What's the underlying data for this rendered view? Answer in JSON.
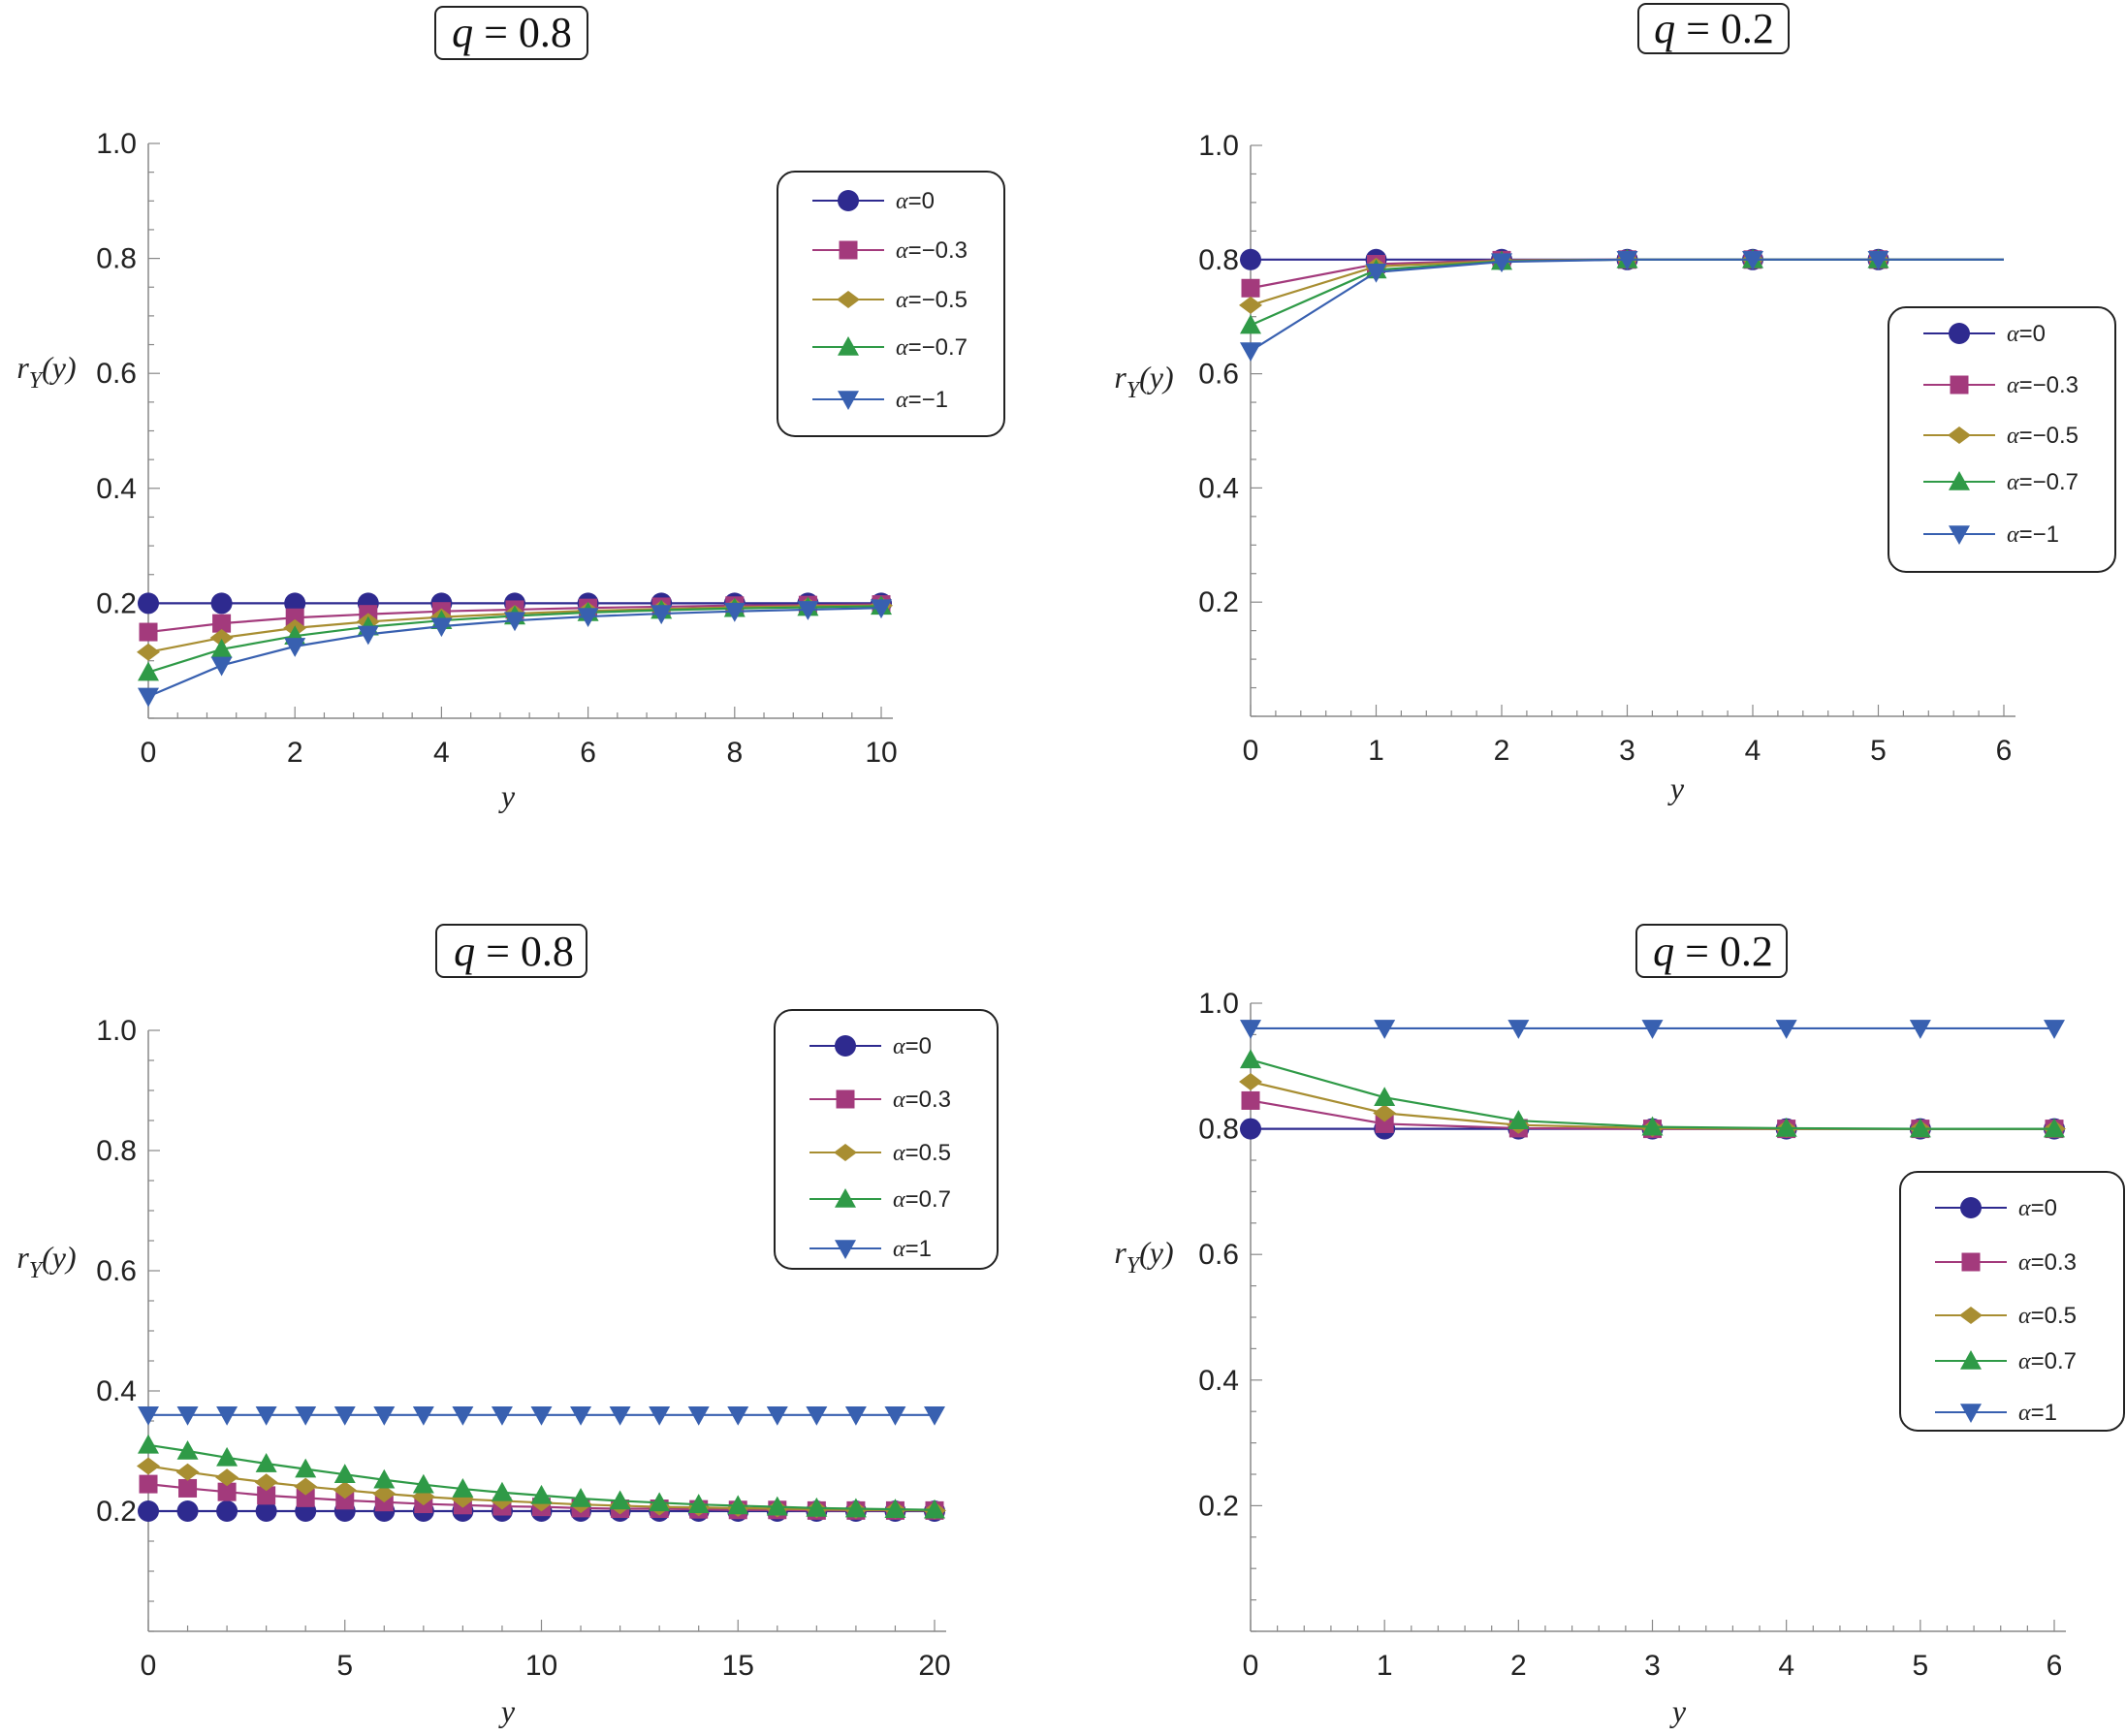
{
  "colors": {
    "alpha_0": "#2e2a8f",
    "alpha_03": "#a33a7c",
    "alpha_05": "#a88e32",
    "alpha_07": "#2f9a47",
    "alpha_1": "#3860b0",
    "axis": "#888888"
  },
  "chart_data": [
    {
      "type": "line",
      "title_var": "q",
      "title_val": "0.8",
      "xlabel": "y",
      "ylabel": "r",
      "ylabel_sub": "Y",
      "ylabel_arg": "(y)",
      "xlim": [
        0,
        10
      ],
      "ylim": [
        0,
        1.0
      ],
      "xticks": [
        "0",
        "2",
        "4",
        "6",
        "8",
        "10"
      ],
      "yticks": [
        "0.2",
        "0.4",
        "0.6",
        "0.8",
        "1.0"
      ],
      "x": [
        0,
        1,
        2,
        3,
        4,
        5,
        6,
        7,
        8,
        9,
        10
      ],
      "legend_position": "top-right",
      "series": [
        {
          "name": "α=0",
          "alpha": "α",
          "rest": "=0",
          "marker": "circle",
          "color_key": "alpha_0",
          "values": [
            0.2,
            0.2,
            0.2,
            0.2,
            0.2,
            0.2,
            0.2,
            0.2,
            0.2,
            0.2,
            0.2
          ]
        },
        {
          "name": "α=−0.3",
          "alpha": "α",
          "rest": "=−0.3",
          "marker": "square",
          "color_key": "alpha_03",
          "values": [
            0.15,
            0.165,
            0.175,
            0.181,
            0.186,
            0.189,
            0.192,
            0.194,
            0.196,
            0.197,
            0.198
          ]
        },
        {
          "name": "α=−0.5",
          "alpha": "α",
          "rest": "=−0.5",
          "marker": "diamond",
          "color_key": "alpha_05",
          "values": [
            0.115,
            0.14,
            0.157,
            0.168,
            0.176,
            0.182,
            0.187,
            0.19,
            0.193,
            0.195,
            0.196
          ]
        },
        {
          "name": "α=−0.7",
          "alpha": "α",
          "rest": "=−0.7",
          "marker": "triangle-up",
          "color_key": "alpha_07",
          "values": [
            0.08,
            0.12,
            0.143,
            0.159,
            0.17,
            0.178,
            0.184,
            0.188,
            0.191,
            0.193,
            0.195
          ]
        },
        {
          "name": "α=−1",
          "alpha": "α",
          "rest": "=−1",
          "marker": "triangle-down",
          "color_key": "alpha_1",
          "values": [
            0.038,
            0.092,
            0.125,
            0.146,
            0.16,
            0.17,
            0.177,
            0.182,
            0.186,
            0.189,
            0.192
          ]
        }
      ]
    },
    {
      "type": "line",
      "title_var": "q",
      "title_val": "0.2",
      "xlabel": "y",
      "ylabel": "r",
      "ylabel_sub": "Y",
      "ylabel_arg": "(y)",
      "xlim": [
        0,
        6
      ],
      "ylim": [
        0,
        1.0
      ],
      "xticks": [
        "0",
        "1",
        "2",
        "3",
        "4",
        "5",
        "6"
      ],
      "yticks": [
        "0.2",
        "0.4",
        "0.6",
        "0.8",
        "1.0"
      ],
      "x": [
        0,
        1,
        2,
        3,
        4,
        5
      ],
      "line_extends_to": 6,
      "legend_position": "middle-right",
      "series": [
        {
          "name": "α=0",
          "alpha": "α",
          "rest": "=0",
          "marker": "circle",
          "color_key": "alpha_0",
          "values": [
            0.8,
            0.8,
            0.8,
            0.8,
            0.8,
            0.8
          ]
        },
        {
          "name": "α=−0.3",
          "alpha": "α",
          "rest": "=−0.3",
          "marker": "square",
          "color_key": "alpha_03",
          "values": [
            0.75,
            0.792,
            0.799,
            0.8,
            0.8,
            0.8
          ]
        },
        {
          "name": "α=−0.5",
          "alpha": "α",
          "rest": "=−0.5",
          "marker": "diamond",
          "color_key": "alpha_05",
          "values": [
            0.72,
            0.788,
            0.798,
            0.8,
            0.8,
            0.8
          ]
        },
        {
          "name": "α=−0.7",
          "alpha": "α",
          "rest": "=−0.7",
          "marker": "triangle-up",
          "color_key": "alpha_07",
          "values": [
            0.685,
            0.782,
            0.797,
            0.8,
            0.8,
            0.8
          ]
        },
        {
          "name": "α=−1",
          "alpha": "α",
          "rest": "=−1",
          "marker": "triangle-down",
          "color_key": "alpha_1",
          "values": [
            0.64,
            0.778,
            0.796,
            0.8,
            0.8,
            0.8
          ]
        }
      ]
    },
    {
      "type": "line",
      "title_var": "q",
      "title_val": "0.8",
      "xlabel": "y",
      "ylabel": "r",
      "ylabel_sub": "Y",
      "ylabel_arg": "(y)",
      "xlim": [
        0,
        20
      ],
      "ylim": [
        0,
        1.0
      ],
      "xticks": [
        "0",
        "5",
        "10",
        "15",
        "20"
      ],
      "yticks": [
        "0.2",
        "0.4",
        "0.6",
        "0.8",
        "1.0"
      ],
      "x": [
        0,
        1,
        2,
        3,
        4,
        5,
        6,
        7,
        8,
        9,
        10,
        11,
        12,
        13,
        14,
        15,
        16,
        17,
        18,
        19,
        20
      ],
      "legend_position": "top-right",
      "series": [
        {
          "name": "α=0",
          "alpha": "α",
          "rest": "=0",
          "marker": "circle",
          "color_key": "alpha_0",
          "values": [
            0.2,
            0.2,
            0.2,
            0.2,
            0.2,
            0.2,
            0.2,
            0.2,
            0.2,
            0.2,
            0.2,
            0.2,
            0.2,
            0.2,
            0.2,
            0.2,
            0.2,
            0.2,
            0.2,
            0.2,
            0.2
          ]
        },
        {
          "name": "α=0.3",
          "alpha": "α",
          "rest": "=0.3",
          "marker": "square",
          "color_key": "alpha_03",
          "values": [
            0.245,
            0.238,
            0.232,
            0.226,
            0.222,
            0.218,
            0.215,
            0.212,
            0.21,
            0.208,
            0.207,
            0.205,
            0.204,
            0.204,
            0.203,
            0.202,
            0.202,
            0.201,
            0.201,
            0.201,
            0.201
          ]
        },
        {
          "name": "α=0.5",
          "alpha": "α",
          "rest": "=0.5",
          "marker": "diamond",
          "color_key": "alpha_05",
          "values": [
            0.275,
            0.265,
            0.256,
            0.248,
            0.241,
            0.235,
            0.229,
            0.224,
            0.22,
            0.217,
            0.214,
            0.211,
            0.209,
            0.207,
            0.206,
            0.205,
            0.204,
            0.203,
            0.202,
            0.202,
            0.201
          ]
        },
        {
          "name": "α=0.7",
          "alpha": "α",
          "rest": "=0.7",
          "marker": "triangle-up",
          "color_key": "alpha_07",
          "values": [
            0.31,
            0.3,
            0.289,
            0.279,
            0.27,
            0.261,
            0.252,
            0.244,
            0.237,
            0.231,
            0.226,
            0.221,
            0.217,
            0.214,
            0.211,
            0.209,
            0.207,
            0.205,
            0.204,
            0.203,
            0.202
          ]
        },
        {
          "name": "α=1",
          "alpha": "α",
          "rest": "=1",
          "marker": "triangle-down",
          "color_key": "alpha_1",
          "values": [
            0.36,
            0.36,
            0.36,
            0.36,
            0.36,
            0.36,
            0.36,
            0.36,
            0.36,
            0.36,
            0.36,
            0.36,
            0.36,
            0.36,
            0.36,
            0.36,
            0.36,
            0.36,
            0.36,
            0.36,
            0.36
          ]
        }
      ]
    },
    {
      "type": "line",
      "title_var": "q",
      "title_val": "0.2",
      "xlabel": "y",
      "ylabel": "r",
      "ylabel_sub": "Y",
      "ylabel_arg": "(y)",
      "xlim": [
        0,
        6
      ],
      "ylim": [
        0,
        1.0
      ],
      "xticks": [
        "0",
        "1",
        "2",
        "3",
        "4",
        "5",
        "6"
      ],
      "yticks": [
        "0.2",
        "0.4",
        "0.6",
        "0.8",
        "1.0"
      ],
      "x": [
        0,
        1,
        2,
        3,
        4,
        5,
        6
      ],
      "legend_position": "middle-right",
      "series": [
        {
          "name": "α=0",
          "alpha": "α",
          "rest": "=0",
          "marker": "circle",
          "color_key": "alpha_0",
          "values": [
            0.8,
            0.8,
            0.8,
            0.8,
            0.8,
            0.8,
            0.8
          ]
        },
        {
          "name": "α=0.3",
          "alpha": "α",
          "rest": "=0.3",
          "marker": "square",
          "color_key": "alpha_03",
          "values": [
            0.845,
            0.808,
            0.801,
            0.8,
            0.8,
            0.8,
            0.8
          ]
        },
        {
          "name": "α=0.5",
          "alpha": "α",
          "rest": "=0.5",
          "marker": "diamond",
          "color_key": "alpha_05",
          "values": [
            0.875,
            0.825,
            0.806,
            0.801,
            0.8,
            0.8,
            0.8
          ]
        },
        {
          "name": "α=0.7",
          "alpha": "α",
          "rest": "=0.7",
          "marker": "triangle-up",
          "color_key": "alpha_07",
          "values": [
            0.91,
            0.85,
            0.813,
            0.803,
            0.801,
            0.8,
            0.8
          ]
        },
        {
          "name": "α=1",
          "alpha": "α",
          "rest": "=1",
          "marker": "triangle-down",
          "color_key": "alpha_1",
          "values": [
            0.96,
            0.96,
            0.96,
            0.96,
            0.96,
            0.96,
            0.96
          ]
        }
      ]
    }
  ]
}
